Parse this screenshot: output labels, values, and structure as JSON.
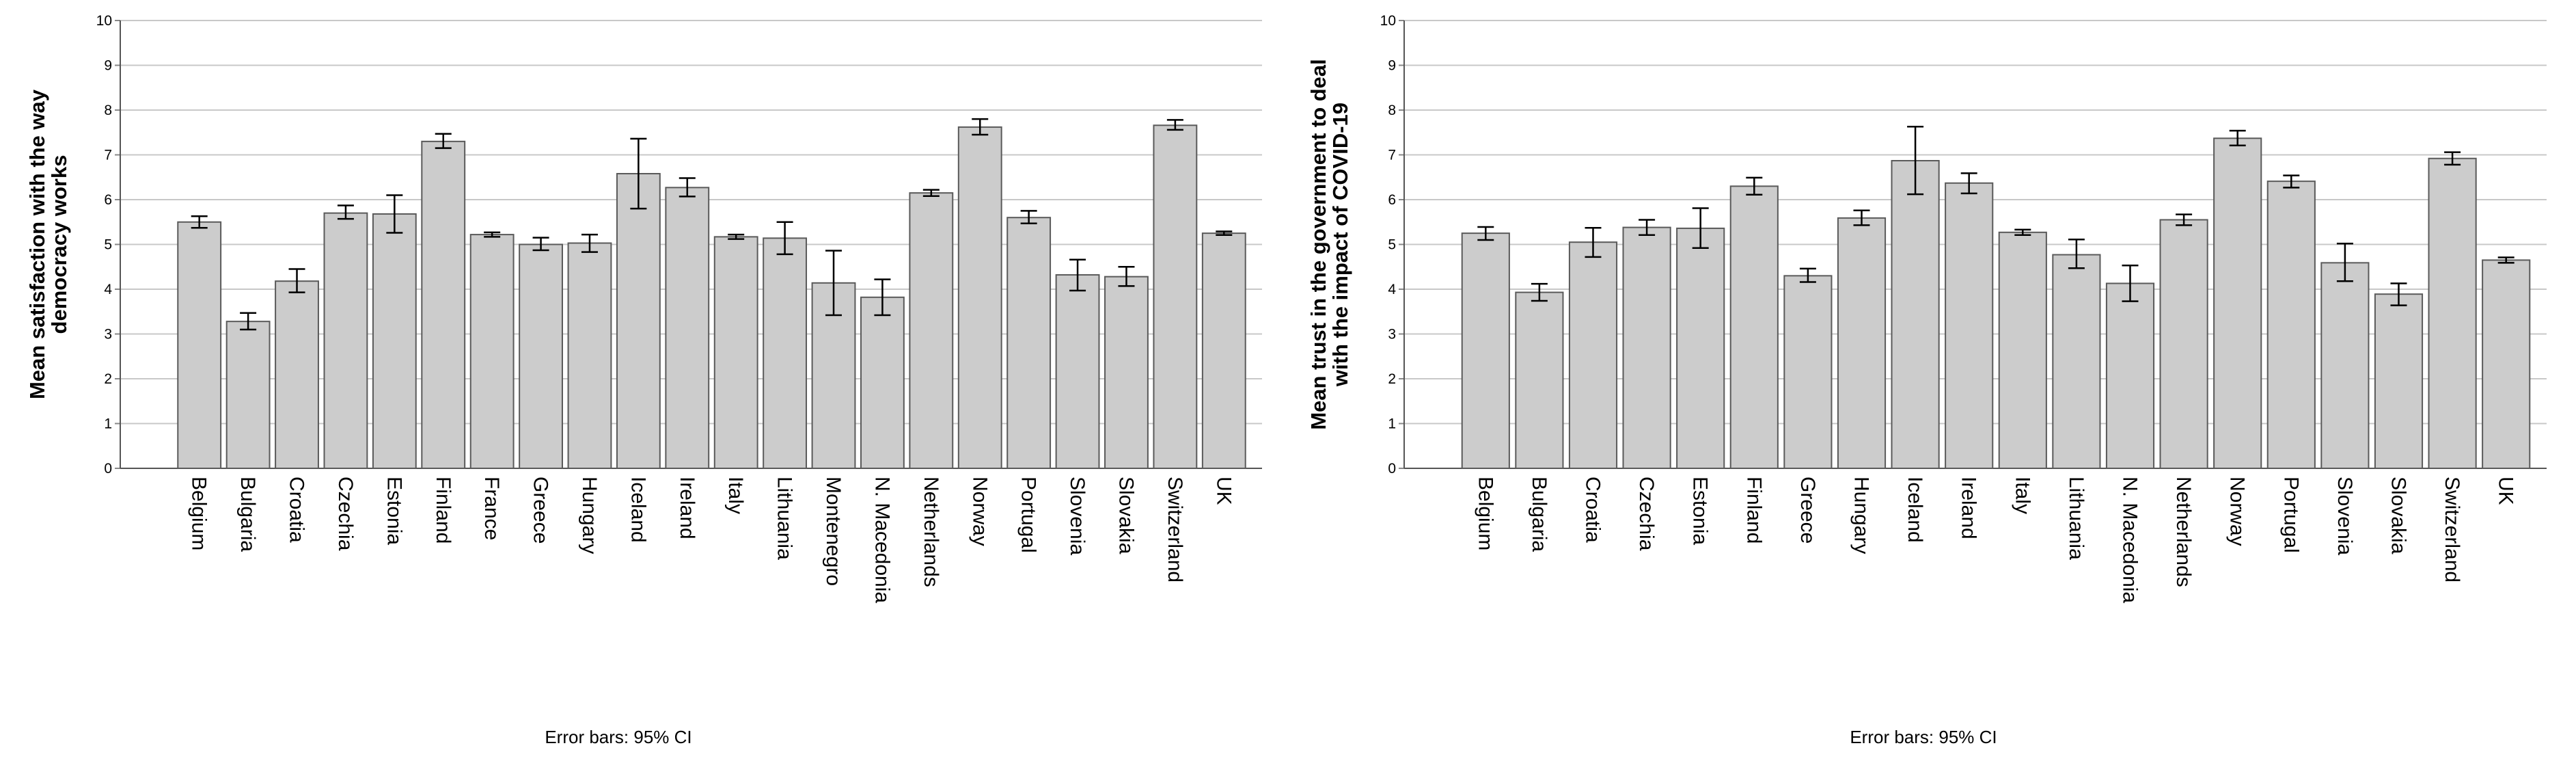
{
  "chart_data": [
    {
      "type": "bar",
      "ylabel": [
        "Mean satisfaction with the way",
        "democracy works"
      ],
      "note": "Error bars: 95% CI",
      "ylim": [
        0,
        10
      ],
      "yticks": [
        0,
        1,
        2,
        3,
        4,
        5,
        6,
        7,
        8,
        9,
        10
      ],
      "grid": true,
      "bar_color": "#cccccc",
      "categories": [
        "Belgium",
        "Bulgaria",
        "Croatia",
        "Czechia",
        "Estonia",
        "Finland",
        "France",
        "Greece",
        "Hungary",
        "Iceland",
        "Ireland",
        "Italy",
        "Lithuania",
        "Montenegro",
        "N. Macedonia",
        "Netherlands",
        "Norway",
        "Portugal",
        "Slovenia",
        "Slovakia",
        "Switzerland",
        "UK"
      ],
      "values": [
        5.5,
        3.28,
        4.18,
        5.7,
        5.68,
        7.3,
        5.22,
        5.0,
        5.03,
        6.58,
        6.27,
        5.17,
        5.14,
        4.14,
        3.82,
        6.15,
        7.62,
        5.6,
        4.32,
        4.28,
        7.66,
        5.25
      ],
      "ci_low": [
        5.37,
        3.1,
        3.93,
        5.57,
        5.26,
        7.15,
        5.17,
        4.87,
        4.83,
        5.8,
        6.07,
        5.12,
        4.78,
        3.42,
        3.42,
        6.08,
        7.45,
        5.47,
        3.97,
        4.07,
        7.56,
        5.21
      ],
      "ci_high": [
        5.63,
        3.47,
        4.45,
        5.87,
        6.1,
        7.47,
        5.27,
        5.15,
        5.22,
        7.36,
        6.48,
        5.22,
        5.5,
        4.86,
        4.22,
        6.22,
        7.8,
        5.75,
        4.66,
        4.5,
        7.78,
        5.29
      ]
    },
    {
      "type": "bar",
      "ylabel": [
        "Mean trust in the government to deal",
        "with the impact of COVID-19"
      ],
      "note": "Error bars: 95% CI",
      "ylim": [
        0,
        10
      ],
      "yticks": [
        0,
        1,
        2,
        3,
        4,
        5,
        6,
        7,
        8,
        9,
        10
      ],
      "grid": true,
      "bar_color": "#cccccc",
      "categories": [
        "Belgium",
        "Bulgaria",
        "Croatia",
        "Czechia",
        "Estonia",
        "Finland",
        "Greece",
        "Hungary",
        "Iceland",
        "Ireland",
        "Italy",
        "Lithuania",
        "N. Macedonia",
        "Netherlands",
        "Norway",
        "Portugal",
        "Slovenia",
        "Slovakia",
        "Switzerland",
        "UK"
      ],
      "values": [
        5.25,
        3.93,
        5.05,
        5.38,
        5.36,
        6.3,
        4.3,
        5.59,
        6.87,
        6.37,
        5.27,
        4.77,
        4.13,
        5.55,
        7.37,
        6.41,
        4.59,
        3.89,
        6.92,
        4.65
      ],
      "ci_low": [
        5.1,
        3.74,
        4.72,
        5.21,
        4.92,
        6.11,
        4.16,
        5.43,
        6.12,
        6.14,
        5.21,
        4.47,
        3.73,
        5.43,
        7.21,
        6.27,
        4.18,
        3.64,
        6.78,
        4.59
      ],
      "ci_high": [
        5.39,
        4.12,
        5.37,
        5.55,
        5.81,
        6.49,
        4.46,
        5.76,
        7.63,
        6.59,
        5.33,
        5.11,
        4.53,
        5.67,
        7.54,
        6.54,
        5.02,
        4.13,
        7.06,
        4.71
      ]
    }
  ]
}
